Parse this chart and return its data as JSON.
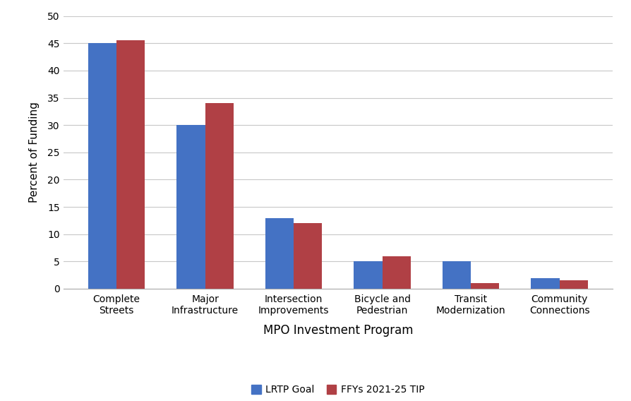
{
  "categories": [
    "Complete\nStreets",
    "Major\nInfrastructure",
    "Intersection\nImprovements",
    "Bicycle and\nPedestrian",
    "Transit\nModernization",
    "Community\nConnections"
  ],
  "lrtp_goal": [
    45,
    30,
    13,
    5,
    5,
    2
  ],
  "tip_values": [
    45.5,
    34,
    12,
    6,
    1,
    1.5
  ],
  "lrtp_color": "#4472C4",
  "tip_color": "#B04045",
  "ylabel": "Percent of Funding",
  "xlabel": "MPO Investment Program",
  "ylim": [
    0,
    50
  ],
  "yticks": [
    0,
    5,
    10,
    15,
    20,
    25,
    30,
    35,
    40,
    45,
    50
  ],
  "legend_lrtp": "LRTP Goal",
  "legend_tip": "FFYs 2021-25 TIP",
  "bar_width": 0.32,
  "background_color": "#ffffff",
  "grid_color": "#c8c8c8",
  "spine_color": "#aaaaaa",
  "tick_label_size": 10,
  "axis_label_size": 11,
  "xlabel_size": 12,
  "legend_size": 10
}
